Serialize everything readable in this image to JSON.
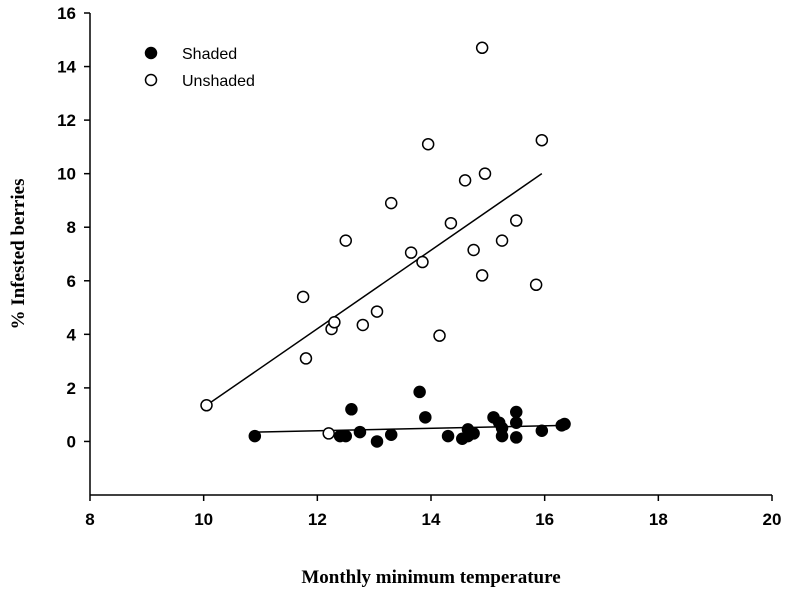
{
  "chart_data": {
    "type": "scatter",
    "title": "",
    "xlabel": "Monthly minimum temperature",
    "ylabel": "% Infested berries",
    "xlim": [
      8,
      20
    ],
    "ylim": [
      -2,
      16
    ],
    "xticks": [
      8,
      10,
      12,
      14,
      16,
      18,
      20
    ],
    "yticks": [
      0,
      2,
      4,
      6,
      8,
      10,
      12,
      14,
      16
    ],
    "legend_position": "top-left",
    "grid": false,
    "series": [
      {
        "name": "Shaded",
        "marker": "filled-circle",
        "color": "#000000",
        "points": [
          [
            10.9,
            0.2
          ],
          [
            12.4,
            0.2
          ],
          [
            12.5,
            0.2
          ],
          [
            12.6,
            1.2
          ],
          [
            12.75,
            0.35
          ],
          [
            13.05,
            0.0
          ],
          [
            13.3,
            0.25
          ],
          [
            13.8,
            1.85
          ],
          [
            13.9,
            0.9
          ],
          [
            14.3,
            0.2
          ],
          [
            14.55,
            0.1
          ],
          [
            14.65,
            0.45
          ],
          [
            14.65,
            0.2
          ],
          [
            14.75,
            0.3
          ],
          [
            15.1,
            0.9
          ],
          [
            15.2,
            0.7
          ],
          [
            15.25,
            0.5
          ],
          [
            15.25,
            0.2
          ],
          [
            15.5,
            1.1
          ],
          [
            15.5,
            0.7
          ],
          [
            15.5,
            0.15
          ],
          [
            15.95,
            0.4
          ],
          [
            16.3,
            0.6
          ],
          [
            16.35,
            0.65
          ]
        ],
        "trendline": {
          "x": [
            10.9,
            16.35
          ],
          "y": [
            0.35,
            0.6
          ]
        }
      },
      {
        "name": "Unshaded",
        "marker": "open-circle",
        "color": "#000000",
        "points": [
          [
            10.05,
            1.35
          ],
          [
            11.75,
            5.4
          ],
          [
            11.8,
            3.1
          ],
          [
            12.2,
            0.3
          ],
          [
            12.25,
            4.2
          ],
          [
            12.3,
            4.45
          ],
          [
            12.5,
            7.5
          ],
          [
            12.8,
            4.35
          ],
          [
            13.05,
            4.85
          ],
          [
            13.3,
            8.9
          ],
          [
            13.65,
            7.05
          ],
          [
            13.85,
            6.7
          ],
          [
            13.95,
            11.1
          ],
          [
            14.15,
            3.95
          ],
          [
            14.35,
            8.15
          ],
          [
            14.6,
            9.75
          ],
          [
            14.75,
            7.15
          ],
          [
            14.9,
            14.7
          ],
          [
            14.9,
            6.2
          ],
          [
            14.95,
            10.0
          ],
          [
            15.25,
            7.5
          ],
          [
            15.5,
            8.25
          ],
          [
            15.85,
            5.85
          ],
          [
            15.95,
            11.25
          ]
        ],
        "trendline": {
          "x": [
            10.05,
            15.95
          ],
          "y": [
            1.35,
            10.0
          ]
        }
      }
    ]
  }
}
